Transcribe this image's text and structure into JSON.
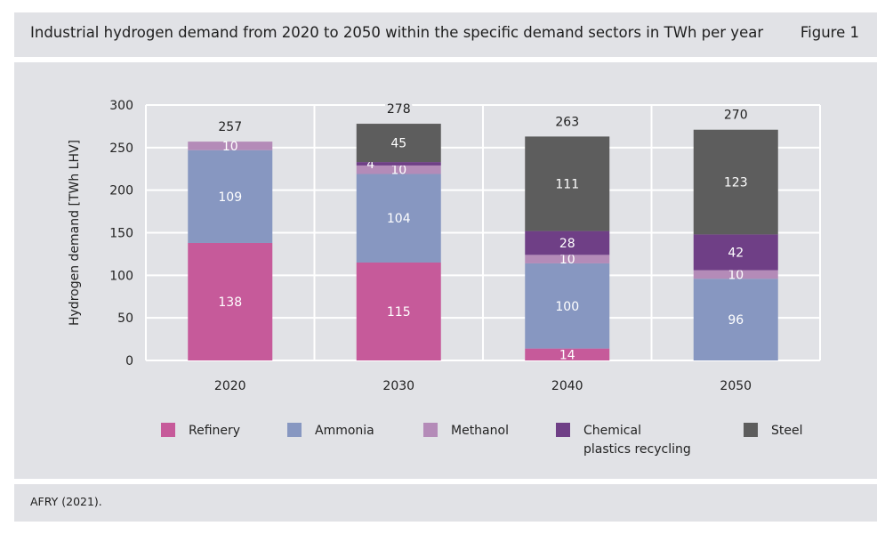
{
  "header": {
    "title": "Industrial hydrogen demand from 2020 to 2050 within the specific demand sectors in TWh per year",
    "figure_label": "Figure 1"
  },
  "footer": {
    "source": "AFRY (2021)."
  },
  "chart_data": {
    "type": "bar",
    "stacked": true,
    "title": "Industrial hydrogen demand from 2020 to 2050 within the specific demand sectors in TWh per year",
    "xlabel": "",
    "ylabel": "Hydrogen demand [TWh LHV]",
    "ylim": [
      0,
      300
    ],
    "yticks": [
      0,
      50,
      100,
      150,
      200,
      250,
      300
    ],
    "grid": true,
    "legend_position": "bottom",
    "categories": [
      "2020",
      "2030",
      "2040",
      "2050"
    ],
    "totals": [
      257,
      278,
      263,
      270
    ],
    "series": [
      {
        "name": "Refinery",
        "color": "#c65a9a",
        "values": [
          138,
          115,
          14,
          0
        ],
        "labels": [
          "138",
          "115",
          "14",
          ""
        ]
      },
      {
        "name": "Ammonia",
        "color": "#8797c1",
        "values": [
          109,
          104,
          100,
          96
        ],
        "labels": [
          "109",
          "104",
          "100",
          "96"
        ]
      },
      {
        "name": "Methanol",
        "color": "#b48bb8",
        "values": [
          10,
          10,
          10,
          10
        ],
        "labels": [
          "10",
          "10",
          "10",
          "10"
        ]
      },
      {
        "name": "Chemical plastics recycling",
        "color": "#6f3f86",
        "values": [
          0,
          4,
          28,
          42
        ],
        "labels": [
          "",
          "4",
          "28",
          "42"
        ]
      },
      {
        "name": "Steel",
        "color": "#5d5d5d",
        "values": [
          0,
          45,
          111,
          123
        ],
        "labels": [
          "",
          "45",
          "111",
          "123"
        ]
      }
    ]
  }
}
